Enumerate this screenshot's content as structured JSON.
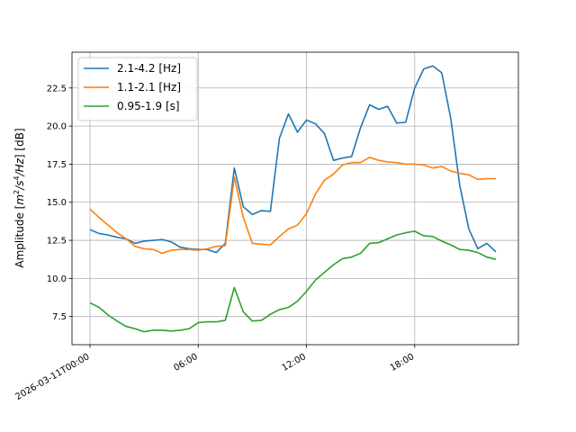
{
  "chart_data": {
    "type": "line",
    "title": "",
    "xlabel": "",
    "ylabel": "Amplitude [m²/s⁴/Hz] [dB]",
    "ylabel_parts": {
      "pre": "Amplitude [",
      "m": "m",
      "exp2": "2",
      "s": "/s",
      "exp4": "4",
      "hz": "/Hz",
      "post": "] [dB]"
    },
    "x_unit": "hours since 2026-03-11T00:00",
    "xlim": [
      -1.0,
      23.75
    ],
    "ylim": [
      5.65,
      24.85
    ],
    "x_ticks": [
      {
        "value": 0,
        "label": "2026-03-11T00:00"
      },
      {
        "value": 6,
        "label": "06:00"
      },
      {
        "value": 12,
        "label": "12:00"
      },
      {
        "value": 18,
        "label": "18:00"
      }
    ],
    "y_ticks": [
      {
        "value": 7.5,
        "label": "7.5"
      },
      {
        "value": 10.0,
        "label": "10.0"
      },
      {
        "value": 12.5,
        "label": "12.5"
      },
      {
        "value": 15.0,
        "label": "15.0"
      },
      {
        "value": 17.5,
        "label": "17.5"
      },
      {
        "value": 20.0,
        "label": "20.0"
      },
      {
        "value": 22.5,
        "label": "22.5"
      }
    ],
    "grid": true,
    "legend": "upper-left",
    "x": [
      0,
      0.5,
      1,
      1.5,
      2,
      2.5,
      3,
      3.5,
      4,
      4.5,
      5,
      5.5,
      6,
      6.5,
      7,
      7.5,
      8,
      8.5,
      9,
      9.5,
      10,
      10.5,
      11,
      11.5,
      12,
      12.5,
      13,
      13.5,
      14,
      14.5,
      15,
      15.5,
      16,
      16.5,
      17,
      17.5,
      18,
      18.5,
      19,
      19.5,
      20,
      20.5,
      21,
      21.5,
      22,
      22.5
    ],
    "series": [
      {
        "name": "2.1-4.2 [Hz]",
        "color": "#1f77b4",
        "values": [
          13.2,
          12.95,
          12.85,
          12.7,
          12.6,
          12.3,
          12.45,
          12.5,
          12.55,
          12.4,
          12.05,
          11.95,
          11.9,
          11.9,
          11.7,
          12.3,
          17.25,
          14.7,
          14.2,
          14.45,
          14.4,
          19.2,
          20.8,
          19.6,
          20.4,
          20.15,
          19.5,
          17.75,
          17.9,
          18.0,
          19.9,
          21.4,
          21.1,
          21.3,
          20.2,
          20.25,
          22.5,
          23.75,
          23.95,
          23.5,
          20.5,
          16.1,
          13.25,
          11.95,
          12.3,
          11.75
        ]
      },
      {
        "name": "1.1-2.1 [Hz]",
        "color": "#ff7f0e",
        "values": [
          14.55,
          14.0,
          13.5,
          13.0,
          12.6,
          12.1,
          11.95,
          11.9,
          11.65,
          11.85,
          11.9,
          11.9,
          11.85,
          11.95,
          12.1,
          12.15,
          16.65,
          14.0,
          12.3,
          12.25,
          12.2,
          12.75,
          13.25,
          13.5,
          14.25,
          15.55,
          16.45,
          16.85,
          17.45,
          17.6,
          17.6,
          17.95,
          17.75,
          17.65,
          17.6,
          17.5,
          17.5,
          17.45,
          17.25,
          17.35,
          17.05,
          16.9,
          16.8,
          16.5,
          16.55,
          16.55
        ]
      },
      {
        "name": "0.95-1.9 [s]",
        "color": "#2ca02c",
        "values": [
          8.4,
          8.1,
          7.6,
          7.2,
          6.85,
          6.7,
          6.5,
          6.6,
          6.6,
          6.55,
          6.6,
          6.7,
          7.1,
          7.15,
          7.15,
          7.25,
          9.4,
          7.8,
          7.2,
          7.25,
          7.65,
          7.95,
          8.1,
          8.5,
          9.15,
          9.9,
          10.4,
          10.9,
          11.3,
          11.4,
          11.65,
          12.3,
          12.35,
          12.6,
          12.85,
          13.0,
          13.1,
          12.8,
          12.75,
          12.45,
          12.2,
          11.9,
          11.85,
          11.7,
          11.4,
          11.25
        ]
      }
    ]
  }
}
